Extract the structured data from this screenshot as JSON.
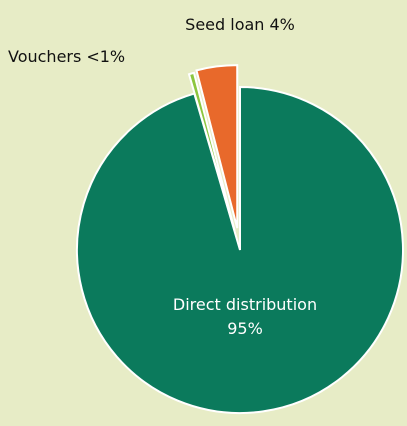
{
  "chart_data": {
    "type": "pie",
    "categories": [
      "Direct distribution",
      "Vouchers",
      "Seed loan"
    ],
    "values": [
      95,
      0.5,
      4
    ],
    "value_labels": [
      "95%",
      "<1%",
      "4%"
    ],
    "colors": [
      "#0b7a5c",
      "#8dc63f",
      "#e8692b"
    ]
  }
}
